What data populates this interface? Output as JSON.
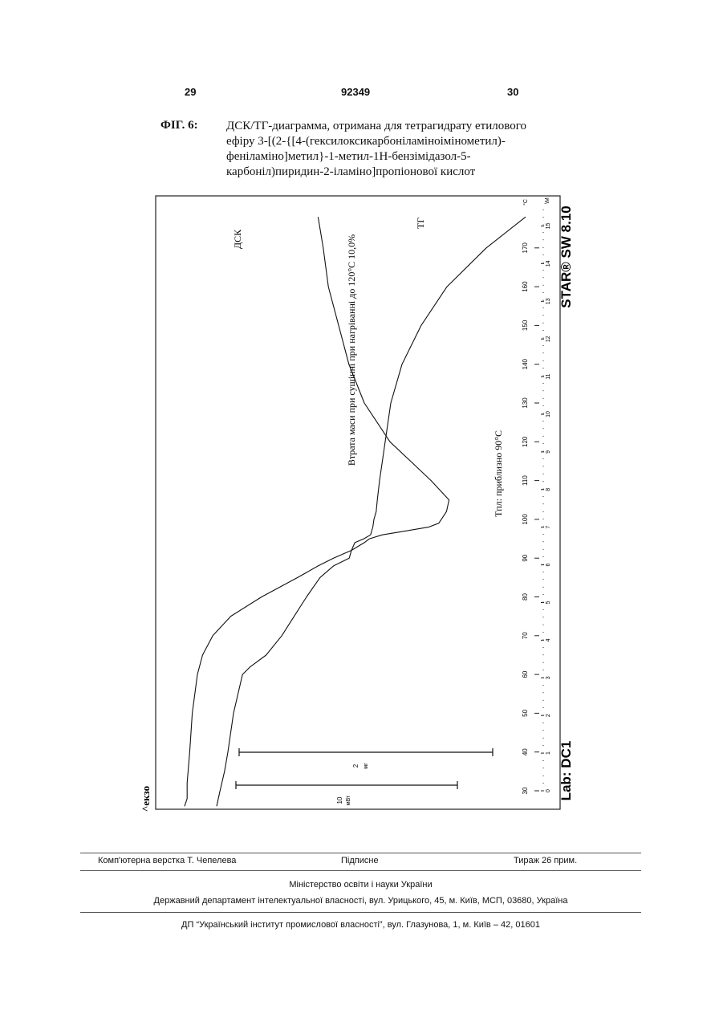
{
  "header": {
    "page_left": "29",
    "patent_number": "92349",
    "page_right": "30"
  },
  "caption": {
    "label": "ФІГ. 6:",
    "lines": [
      "ДСК/ТГ-диаграмма, отримана для тетрагидрату етилового",
      "ефіру 3-[(2-{[4-(гексилоксикарбоніламіноіміномeтил)-",
      "феніламіно]метил}-1-метил-1H-бензімідазол-5-",
      "карбоніл)пиридин-2-іламіно]пропіонової кислот"
    ]
  },
  "chart": {
    "software_label": "STAR® SW 8.10",
    "lab_label": "Lab: DC1",
    "exo_label": "^екзо",
    "unit_label": "°C",
    "min_label": "\\M",
    "dsc_label": "ДСК",
    "tg_label": "ТГ",
    "mass_loss_text": "Втрата маси при сушінні при нагріванні до 120°С 10,0%",
    "tm_text": "Tпл: приблизно 90°C",
    "scale_mg_value": "2",
    "scale_mg_unit": "мг",
    "scale_mw_value": "10",
    "scale_mw_unit": "мВт",
    "temp_ticks": [
      "30",
      "40",
      "50",
      "60",
      "70",
      "80",
      "90",
      "100",
      "110",
      "120",
      "130",
      "140",
      "150",
      "160",
      "170"
    ],
    "min_ticks": [
      "0",
      "1",
      "2",
      "3",
      "4",
      "5",
      "6",
      "7",
      "8",
      "9",
      "10",
      "11",
      "12",
      "13",
      "14",
      "15"
    ]
  },
  "chart_data": {
    "type": "line",
    "title": "",
    "xlabel": "°C",
    "xlim": [
      25,
      178
    ],
    "x_secondary_label": "min",
    "series": [
      {
        "name": "ДСК",
        "x": [
          26,
          28,
          32,
          40,
          50,
          60,
          65,
          70,
          75,
          80,
          85,
          88,
          90,
          92,
          94,
          95,
          96,
          97,
          98,
          99,
          100,
          102,
          105,
          110,
          120,
          130,
          140,
          150,
          160,
          170,
          178
        ],
        "y": [
          10.0,
          9.9,
          9.9,
          9.8,
          9.7,
          9.5,
          9.3,
          8.9,
          8.2,
          7.0,
          5.6,
          4.8,
          4.2,
          3.5,
          3.0,
          2.8,
          2.3,
          1.4,
          0.5,
          0.1,
          0.0,
          -0.2,
          -0.3,
          0.4,
          2.0,
          3.0,
          3.6,
          4.0,
          4.4,
          4.6,
          4.8
        ]
      },
      {
        "name": "ТГ",
        "x": [
          26,
          30,
          35,
          40,
          50,
          60,
          62,
          65,
          70,
          75,
          80,
          85,
          88,
          90,
          92,
          94,
          95,
          96,
          98,
          100,
          102,
          105,
          110,
          120,
          130,
          140,
          150,
          160,
          170,
          178
        ],
        "y": [
          100.0,
          99.7,
          99.3,
          99.0,
          98.5,
          97.7,
          97.0,
          95.6,
          94.2,
          93.1,
          92.0,
          90.8,
          89.6,
          88.2,
          88.0,
          87.7,
          86.9,
          86.3,
          86.1,
          86.0,
          85.8,
          85.7,
          85.5,
          85.0,
          84.5,
          83.5,
          81.8,
          79.5,
          76.0,
          72.5
        ]
      }
    ]
  },
  "footer": {
    "left": "Комп'ютерна верстка Т. Чепелева",
    "middle": "Підписне",
    "right": "Тираж 26 прим.",
    "line2": "Міністерство освіти і науки України",
    "line3": "Державний департамент інтелектуальної власності, вул. Урицького, 45, м. Київ, МСП, 03680, Україна",
    "line4": "ДП “Український інститут промислової власності”, вул. Глазунова, 1, м. Київ – 42, 01601"
  }
}
